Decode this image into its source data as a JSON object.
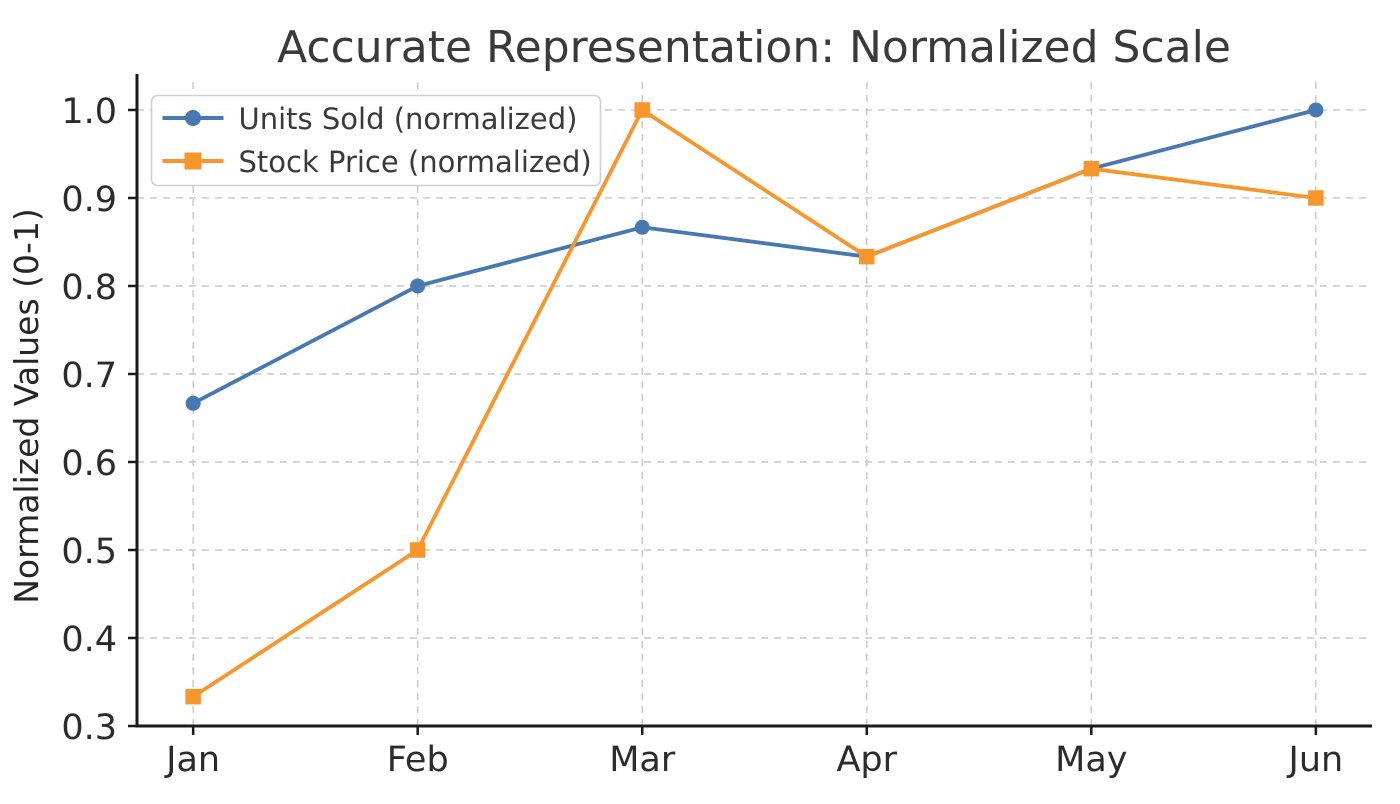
{
  "chart_data": {
    "type": "line",
    "title": "Accurate Representation: Normalized Scale",
    "ylabel": "Normalized Values (0-1)",
    "xlabel": "",
    "categories": [
      "Jan",
      "Feb",
      "Mar",
      "Apr",
      "May",
      "Jun"
    ],
    "series": [
      {
        "name": "Units Sold (normalized)",
        "color": "#4878B0",
        "marker": "circle",
        "values": [
          0.6667,
          0.8,
          0.8667,
          0.8333,
          0.9333,
          1.0
        ]
      },
      {
        "name": "Stock Price (normalized)",
        "color": "#F8962C",
        "marker": "square",
        "values": [
          0.3333,
          0.5,
          1.0,
          0.8333,
          0.9333,
          0.9
        ]
      }
    ],
    "yticks": [
      "0.3",
      "0.4",
      "0.5",
      "0.6",
      "0.7",
      "0.8",
      "0.9",
      "1.0"
    ],
    "ylim": [
      0.3,
      1.0318
    ],
    "grid": "dashed, both axes",
    "legend_position": "upper left",
    "colors": {
      "grid": "#c7c7c7",
      "spine": "#1a1a1a",
      "tick_text": "#2b2b2b",
      "title_text": "#3a3a3a",
      "legend_border": "#d0d0d0",
      "background": "#ffffff"
    }
  }
}
